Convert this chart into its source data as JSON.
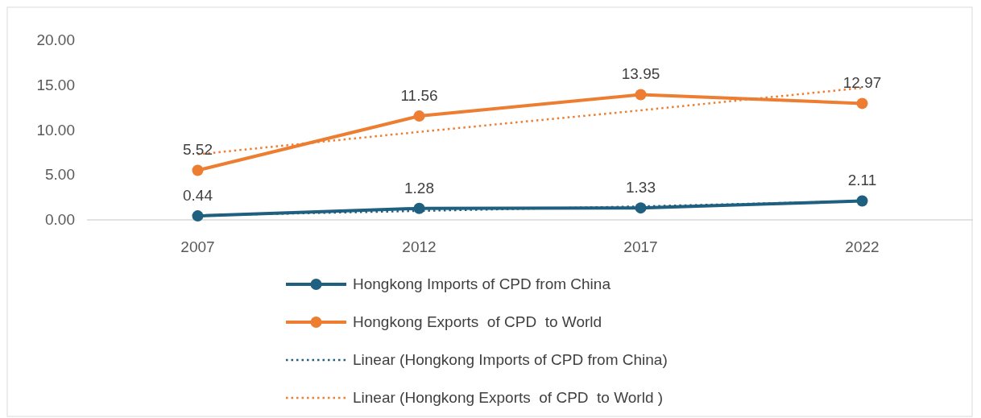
{
  "chart_data": {
    "type": "line",
    "categories": [
      "2007",
      "2012",
      "2017",
      "2022"
    ],
    "ylim": [
      0,
      20
    ],
    "yticks": [
      {
        "value": 0,
        "label": "0.00"
      },
      {
        "value": 5,
        "label": "5.00"
      },
      {
        "value": 10,
        "label": "10.00"
      },
      {
        "value": 15,
        "label": "15.00"
      },
      {
        "value": 20,
        "label": "20.00"
      }
    ],
    "grid": false,
    "legend": "bottom",
    "series": [
      {
        "name": "Hongkong Imports of CPD from China",
        "color": "#1f5f7f",
        "values": [
          0.44,
          1.28,
          1.33,
          2.11
        ],
        "marker": "circle",
        "line_style": "solid",
        "value_labels": [
          "0.44",
          "1.28",
          "1.33",
          "2.11"
        ]
      },
      {
        "name": "Hongkong Exports  of CPD  to World",
        "color": "#ed7d31",
        "values": [
          5.52,
          11.56,
          13.95,
          12.97
        ],
        "marker": "circle",
        "line_style": "solid",
        "value_labels": [
          "5.52",
          "11.56",
          "13.95",
          "12.97"
        ]
      },
      {
        "name": "Linear (Hongkong Imports of CPD from China)",
        "color": "#1f5f7f",
        "values": [
          0.5,
          1.0,
          1.5,
          2.1
        ],
        "marker": "none",
        "line_style": "dotted"
      },
      {
        "name": "Linear (Hongkong Exports  of CPD  to World )",
        "color": "#ed7d31",
        "values": [
          7.3,
          9.8,
          12.2,
          14.7
        ],
        "marker": "none",
        "line_style": "dotted"
      }
    ]
  }
}
